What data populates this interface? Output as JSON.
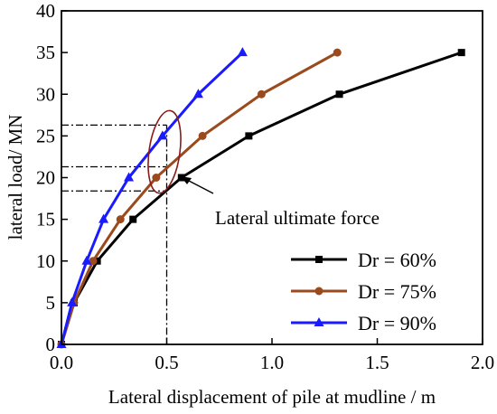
{
  "chart_data": {
    "type": "line",
    "xlabel": "Lateral displacement of pile at mudline / m",
    "ylabel": "lateral load/ MN",
    "xlim": [
      0,
      2.0
    ],
    "ylim": [
      0,
      40
    ],
    "xticks": [
      0.0,
      0.5,
      1.0,
      1.5,
      2.0
    ],
    "xtick_labels": [
      "0.0",
      "0.5",
      "1.0",
      "1.5",
      "2.0"
    ],
    "yticks": [
      0,
      5,
      10,
      15,
      20,
      25,
      30,
      35,
      40
    ],
    "ytick_labels": [
      "0",
      "5",
      "10",
      "15",
      "20",
      "25",
      "30",
      "35",
      "40"
    ],
    "grid": false,
    "legend_position": "bottom-right",
    "series": [
      {
        "name": "Dr = 60%",
        "color": "#000000",
        "marker": "square",
        "x": [
          0.0,
          0.06,
          0.17,
          0.34,
          0.57,
          0.89,
          1.32,
          1.9
        ],
        "y": [
          0,
          5,
          10,
          15,
          20,
          25,
          30,
          35
        ]
      },
      {
        "name": "Dr = 75%",
        "color": "#9b4a1e",
        "marker": "circle",
        "x": [
          0.0,
          0.06,
          0.15,
          0.28,
          0.45,
          0.67,
          0.95,
          1.31
        ],
        "y": [
          0,
          5,
          10,
          15,
          20,
          25,
          30,
          35
        ]
      },
      {
        "name": "Dr = 90%",
        "color": "#1a1aff",
        "marker": "triangle",
        "x": [
          0.0,
          0.05,
          0.12,
          0.2,
          0.32,
          0.48,
          0.65,
          0.86
        ],
        "y": [
          0,
          5,
          10,
          15,
          20,
          25,
          30,
          35
        ]
      }
    ],
    "annotations": {
      "ultimate_label": "Lateral ultimate force",
      "ultimate_x": 0.5,
      "ultimate_loads": [
        26.3,
        21.3,
        18.4
      ],
      "ellipse_color": "#8b1a1a"
    }
  }
}
